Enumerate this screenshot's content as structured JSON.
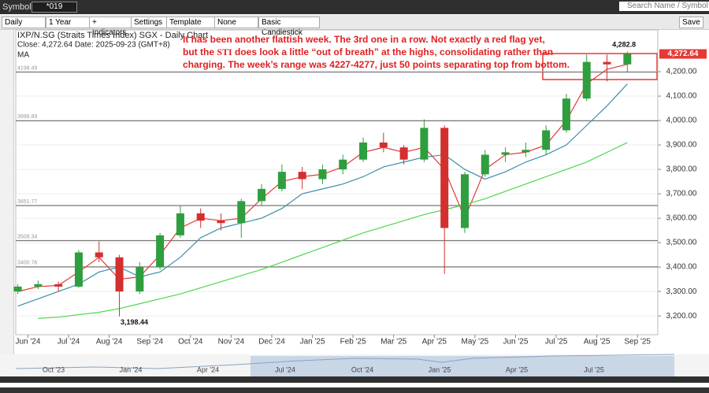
{
  "toolbar": {
    "symbols_label": "Symbols:",
    "symbol": "*019",
    "search": "Search Name / Symbol",
    "save": "Save",
    "controls": [
      "Daily",
      "1 Year",
      "+ Indicators",
      "Settings",
      "Template",
      "None",
      "Basic Candlestick"
    ]
  },
  "chart_data": {
    "type": "candlestick",
    "title": "IXP/N.SG (Straits Times Index) SGX - Daily Chart",
    "subtitle": "Close: 4,272.64  Date: 2025-09-23 (GMT+8)",
    "indicator_label": "MA",
    "note": [
      "It has been another flattish week. The 3rd one in a row. Not exactly a red flag yet,",
      "but the ",
      "STI",
      " does look a little “out of breath” at the highs, consolidating rather than",
      "charging. The week’s range was 4227-4277, just 50 points separating top from bottom."
    ],
    "x": [
      -0.25,
      0.25,
      0.75,
      1.25,
      1.75,
      2.25,
      2.75,
      3.25,
      3.75,
      4.25,
      4.75,
      5.25,
      5.75,
      6.25,
      6.75,
      7.25,
      7.75,
      8.25,
      8.75,
      9.25,
      9.75,
      10.25,
      10.75,
      11.25,
      11.75,
      12.25,
      12.75,
      13.25,
      13.75,
      14.25,
      14.75
    ],
    "open": [
      3300,
      3320,
      3330,
      3320,
      3460,
      3440,
      3300,
      3400,
      3530,
      3620,
      3590,
      3580,
      3670,
      3720,
      3790,
      3760,
      3800,
      3840,
      3910,
      3890,
      3840,
      3970,
      3560,
      3780,
      3860,
      3870,
      3880,
      3960,
      4090,
      4240,
      4230
    ],
    "high": [
      3330,
      3345,
      3340,
      3470,
      3505,
      3450,
      3420,
      3540,
      3650,
      3640,
      3620,
      3680,
      3740,
      3820,
      3810,
      3820,
      3860,
      3930,
      3950,
      3900,
      4005,
      3980,
      3790,
      3880,
      3890,
      3910,
      3980,
      4110,
      4270,
      4270,
      4282.8
    ],
    "low": [
      3290,
      3310,
      3300,
      3315,
      3420,
      3198,
      3290,
      3390,
      3520,
      3560,
      3550,
      3520,
      3650,
      3710,
      3720,
      3740,
      3780,
      3830,
      3870,
      3820,
      3830,
      3372,
      3540,
      3770,
      3830,
      3850,
      3860,
      3950,
      4080,
      4160,
      4200
    ],
    "close": [
      3320,
      3330,
      3320,
      3460,
      3440,
      3300,
      3400,
      3530,
      3620,
      3590,
      3580,
      3670,
      3720,
      3790,
      3760,
      3800,
      3840,
      3910,
      3890,
      3840,
      3970,
      3560,
      3780,
      3860,
      3870,
      3880,
      3960,
      4090,
      4240,
      4230,
      4272.64
    ],
    "up_color": "#2e9e3e",
    "down_color": "#d32f2f",
    "series": [
      {
        "color": "#e53935",
        "values": [
          3300,
          3320,
          3325,
          3380,
          3440,
          3350,
          3360,
          3450,
          3560,
          3600,
          3590,
          3600,
          3680,
          3750,
          3770,
          3780,
          3810,
          3870,
          3890,
          3870,
          3890,
          3800,
          3600,
          3800,
          3860,
          3870,
          3900,
          4000,
          4150,
          4210,
          4230
        ]
      },
      {
        "color": "#3a8fa8",
        "values": [
          3240,
          3270,
          3300,
          3330,
          3380,
          3400,
          3360,
          3380,
          3440,
          3520,
          3560,
          3580,
          3600,
          3640,
          3700,
          3720,
          3740,
          3770,
          3810,
          3830,
          3850,
          3860,
          3800,
          3760,
          3790,
          3830,
          3860,
          3900,
          3980,
          4060,
          4150
        ]
      },
      {
        "color": "#4cd84c",
        "values": [
          null,
          3190,
          3195,
          3205,
          3215,
          3230,
          3250,
          3270,
          3290,
          3315,
          3340,
          3365,
          3390,
          3420,
          3450,
          3480,
          3510,
          3540,
          3565,
          3590,
          3615,
          3635,
          3655,
          3680,
          3710,
          3740,
          3770,
          3800,
          3830,
          3870,
          3910
        ]
      }
    ],
    "hlines": [
      4198.49,
      3998.89,
      3651.77,
      3508.34,
      3400.76
    ],
    "annotations": [
      {
        "x": 14.3,
        "value": 4282.8,
        "label": "4,282.8"
      },
      {
        "x": 2.2,
        "value": 3198.44,
        "label": "3,198.44"
      }
    ],
    "last_price": {
      "value": 4272.64,
      "label": "4,272.64"
    },
    "xlim": [
      -0.3,
      15.5
    ],
    "xticks": [
      {
        "value": 0,
        "label": "Jun '24"
      },
      {
        "value": 1,
        "label": "Jul '24"
      },
      {
        "value": 2,
        "label": "Aug '24"
      },
      {
        "value": 3,
        "label": "Sep '24"
      },
      {
        "value": 4,
        "label": "Oct '24"
      },
      {
        "value": 5,
        "label": "Nov '24"
      },
      {
        "value": 6,
        "label": "Dec '24"
      },
      {
        "value": 7,
        "label": "Jan '25"
      },
      {
        "value": 8,
        "label": "Feb '25"
      },
      {
        "value": 9,
        "label": "Mar '25"
      },
      {
        "value": 10,
        "label": "Apr '25"
      },
      {
        "value": 11,
        "label": "May '25"
      },
      {
        "value": 12,
        "label": "Jun '25"
      },
      {
        "value": 13,
        "label": "Jul '25"
      },
      {
        "value": 14,
        "label": "Aug '25"
      },
      {
        "value": 15,
        "label": "Sep '25"
      }
    ],
    "ylim": [
      3123,
      4371
    ],
    "yticks": [
      {
        "value": 3200,
        "label": "3,200.00"
      },
      {
        "value": 3300,
        "label": "3,300.00"
      },
      {
        "value": 3400,
        "label": "3,400.00"
      },
      {
        "value": 3500,
        "label": "3,500.00"
      },
      {
        "value": 3600,
        "label": "3,600.00"
      },
      {
        "value": 3700,
        "label": "3,700.00"
      },
      {
        "value": 3800,
        "label": "3,800.00"
      },
      {
        "value": 3900,
        "label": "3,900.00"
      },
      {
        "value": 4000,
        "label": "4,000.00"
      },
      {
        "value": 4100,
        "label": "4,100.00"
      },
      {
        "value": 4200,
        "label": "4,200.00"
      }
    ],
    "navigator_labels": [
      "Oct '23",
      "Jan '24",
      "Apr '24",
      "Jul '24",
      "Oct '24",
      "Jan '25",
      "Apr '25",
      "Jul '25"
    ]
  }
}
